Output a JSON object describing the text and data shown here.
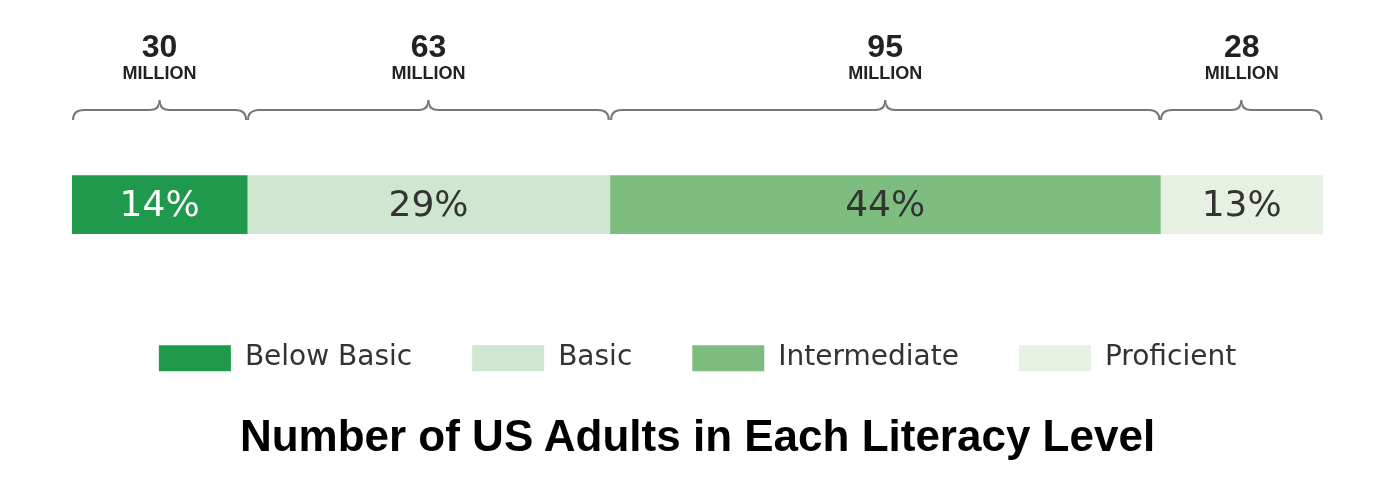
{
  "chart_data": {
    "type": "bar",
    "orientation": "horizontal",
    "stacked": true,
    "title": "Number of US Adults in Each Literacy Level",
    "categories": [
      null
    ],
    "xlim": [
      0,
      100
    ],
    "tick_labels": false,
    "legend": "bottom",
    "series": [
      {
        "name": "Below Basic",
        "color": "#1f9a4c",
        "values": [
          14
        ],
        "value_labels": [
          "14%"
        ]
      },
      {
        "name": "Basic",
        "color": "#cfe6d1",
        "values": [
          29
        ],
        "value_labels": [
          "29%"
        ]
      },
      {
        "name": "Intermediate",
        "color": "#7dbe80",
        "values": [
          44
        ],
        "value_labels": [
          "44%"
        ]
      },
      {
        "name": "Proficient",
        "color": "#e6f1e4",
        "values": [
          13
        ],
        "value_labels": [
          "13%"
        ]
      }
    ],
    "annotations": [
      "30 MILLION",
      "63 MILLION",
      "95 MILLION",
      "28 MILLION"
    ]
  }
}
